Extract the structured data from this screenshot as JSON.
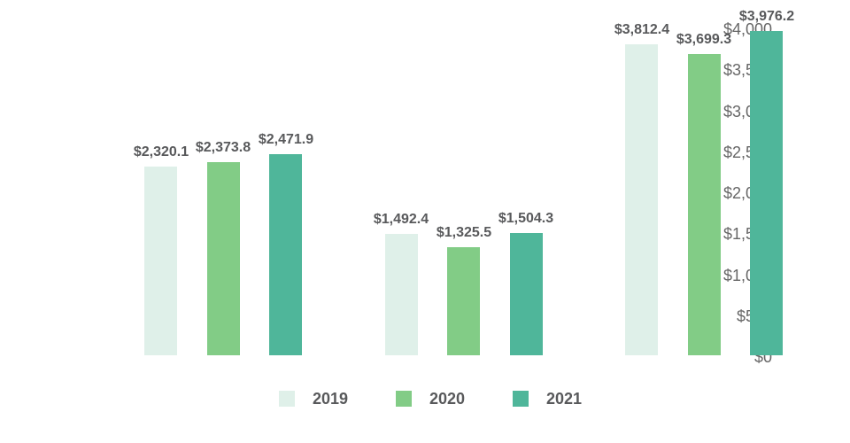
{
  "chart_data": {
    "type": "bar",
    "title": "",
    "categories": [
      "",
      "",
      ""
    ],
    "series": [
      {
        "name": "2019",
        "color": "#dff0e9",
        "values": [
          2320.1,
          1492.4,
          3812.4
        ],
        "labels": [
          "$2,320.1",
          "$1,492.4",
          "$3,812.4"
        ]
      },
      {
        "name": "2020",
        "color": "#82cc86",
        "values": [
          2373.8,
          1325.5,
          3699.3
        ],
        "labels": [
          "$2,373.8",
          "$1,325.5",
          "$3,699.3"
        ]
      },
      {
        "name": "2021",
        "color": "#4fb69a",
        "values": [
          2471.9,
          1504.3,
          3976.2
        ],
        "labels": [
          "$2,471.9",
          "$1,504.3",
          "$3,976.2"
        ]
      }
    ],
    "value_prefix": "$",
    "data_labels_shown": true,
    "grid": false,
    "legend_position": "bottom",
    "y_axis": {
      "min": 0,
      "max": 4000,
      "step": 500,
      "tick_values": [
        0,
        500,
        1000,
        1500,
        2000,
        2500,
        3000,
        3500,
        4000
      ],
      "tick_labels": [
        "$0",
        "$500",
        "$1,000",
        "$1,500",
        "$2,000",
        "$2,500",
        "$3,000",
        "$3,500",
        "$4,000"
      ]
    },
    "colors": {
      "background": "#ffffff",
      "axis_text": "#666666",
      "label_text": "#58595b"
    }
  }
}
